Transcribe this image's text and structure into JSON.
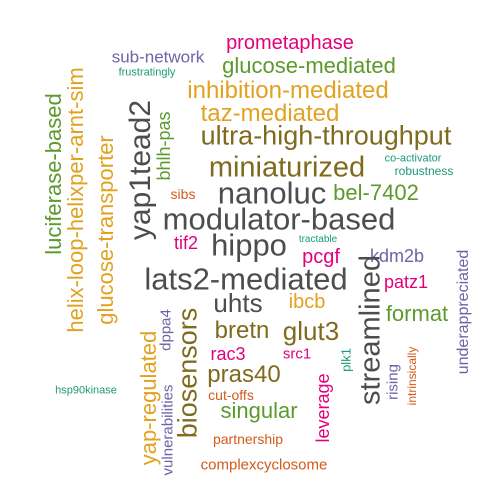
{
  "palette": {
    "olive": "#7f6a1d",
    "gold": "#e2a21f",
    "green": "#5b9a2b",
    "magenta": "#e3007b",
    "teal": "#1b9a77",
    "orange": "#d35a1b",
    "purple": "#6d64a8",
    "gray": "#4d4d4d"
  },
  "words": [
    {
      "text": "prometaphase",
      "color": "magenta"
    },
    {
      "text": "sub-network",
      "color": "purple"
    },
    {
      "text": "glucose-mediated",
      "color": "green"
    },
    {
      "text": "frustratingly",
      "color": "teal"
    },
    {
      "text": "luciferase-based",
      "color": "green"
    },
    {
      "text": "helix-loop-helixper-arnt-sim",
      "color": "gold"
    },
    {
      "text": "inhibition-mediated",
      "color": "gold"
    },
    {
      "text": "taz-mediated",
      "color": "gold"
    },
    {
      "text": "bhlh-pas",
      "color": "green"
    },
    {
      "text": "yap1tead2",
      "color": "gray"
    },
    {
      "text": "ultra-high-throughput",
      "color": "olive"
    },
    {
      "text": "glucose-transporter",
      "color": "gold"
    },
    {
      "text": "miniaturized",
      "color": "olive"
    },
    {
      "text": "co-activator",
      "color": "teal"
    },
    {
      "text": "robustness",
      "color": "teal"
    },
    {
      "text": "nanoluc",
      "color": "gray"
    },
    {
      "text": "sibs",
      "color": "orange"
    },
    {
      "text": "bel-7402",
      "color": "green"
    },
    {
      "text": "modulator-based",
      "color": "gray"
    },
    {
      "text": "tif2",
      "color": "magenta"
    },
    {
      "text": "hippo",
      "color": "gray"
    },
    {
      "text": "tractable",
      "color": "teal"
    },
    {
      "text": "kdm2b",
      "color": "purple"
    },
    {
      "text": "pcgf",
      "color": "magenta"
    },
    {
      "text": "streamlined",
      "color": "gray"
    },
    {
      "text": "underappreciated",
      "color": "purple"
    },
    {
      "text": "lats2-mediated",
      "color": "gray"
    },
    {
      "text": "patz1",
      "color": "magenta"
    },
    {
      "text": "ibcb",
      "color": "gold"
    },
    {
      "text": "uhts",
      "color": "gray"
    },
    {
      "text": "format",
      "color": "green"
    },
    {
      "text": "dppa4",
      "color": "purple"
    },
    {
      "text": "glut3",
      "color": "olive"
    },
    {
      "text": "biosensors",
      "color": "olive"
    },
    {
      "text": "bretn",
      "color": "olive"
    },
    {
      "text": "yap-regulated",
      "color": "gold"
    },
    {
      "text": "rac3",
      "color": "magenta"
    },
    {
      "text": "src1",
      "color": "magenta"
    },
    {
      "text": "plk1",
      "color": "teal"
    },
    {
      "text": "rising",
      "color": "purple"
    },
    {
      "text": "intrinsically",
      "color": "orange"
    },
    {
      "text": "pras40",
      "color": "olive"
    },
    {
      "text": "hsp90kinase",
      "color": "teal"
    },
    {
      "text": "leverage",
      "color": "magenta"
    },
    {
      "text": "cut-offs",
      "color": "orange"
    },
    {
      "text": "singular",
      "color": "green"
    },
    {
      "text": "vulnerabilities",
      "color": "purple"
    },
    {
      "text": "partnership",
      "color": "orange"
    },
    {
      "text": "complexcyclosome",
      "color": "orange"
    }
  ]
}
